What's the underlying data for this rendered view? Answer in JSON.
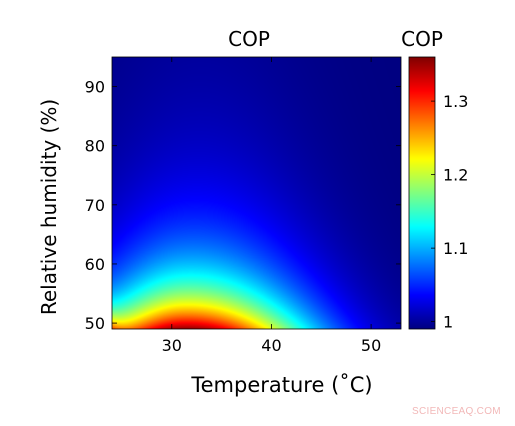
{
  "chart_data": {
    "type": "heatmap",
    "title": "COP",
    "xlabel": "Temperature (˚C)",
    "ylabel": "Relative humidity (%)",
    "xlim": [
      24,
      53
    ],
    "ylim": [
      49,
      95
    ],
    "xticks": [
      30,
      40,
      50
    ],
    "yticks": [
      50,
      60,
      70,
      80,
      90
    ],
    "colorbar": {
      "label": "COP",
      "range": [
        0.99,
        1.36
      ],
      "ticks": [
        1,
        1.1,
        1.2,
        1.3
      ],
      "colormap": "jet"
    },
    "peak": {
      "temperature": 31,
      "relative_humidity": 49,
      "cop": 1.35
    },
    "contour_ridge_temperature": 33
  },
  "watermark": "SCIENCEAQ.COM"
}
